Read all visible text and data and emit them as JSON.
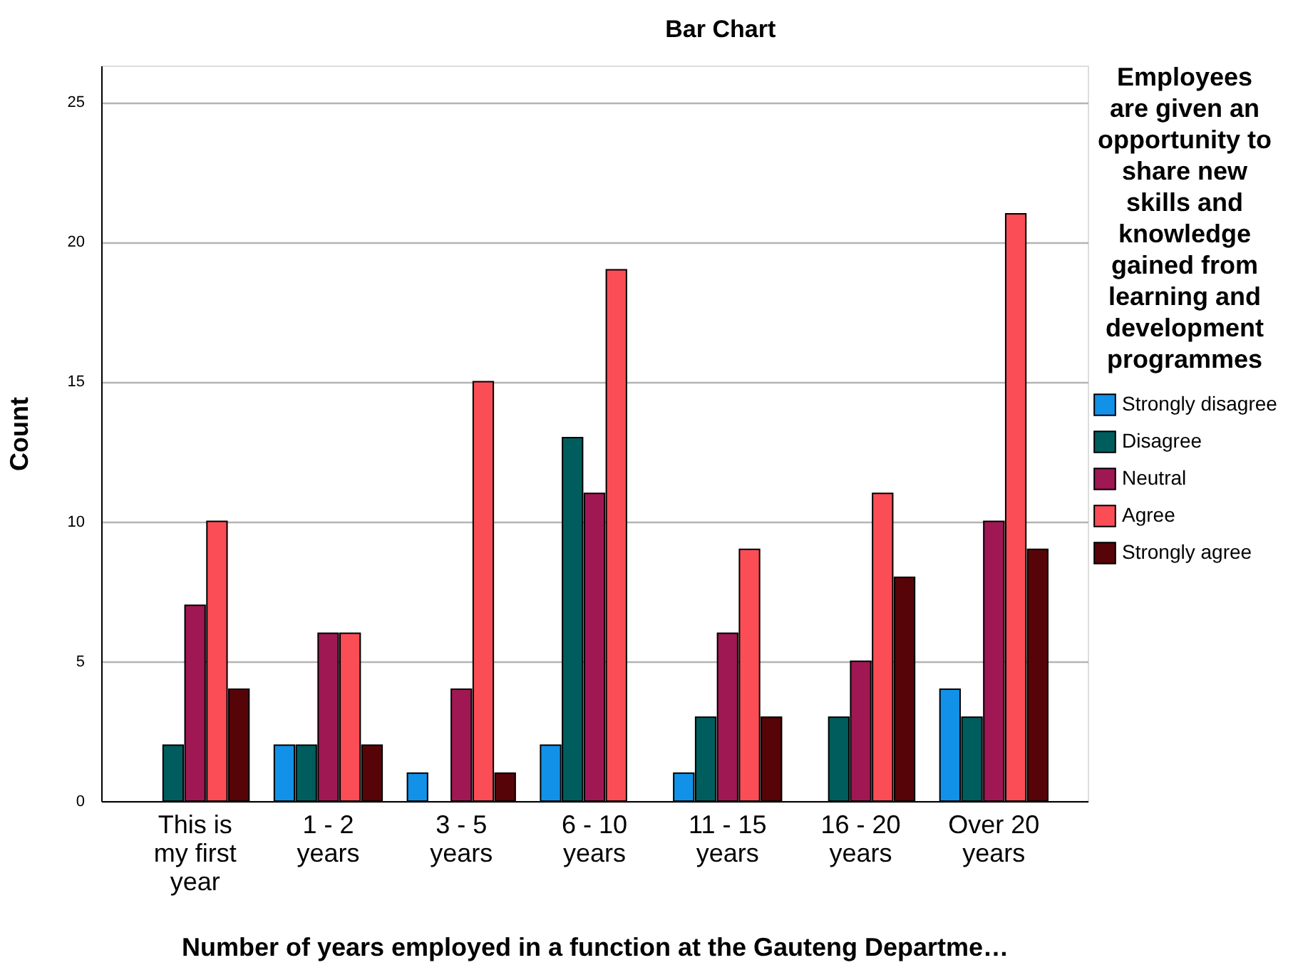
{
  "chart_data": {
    "type": "bar",
    "title": "Bar Chart",
    "xlabel": "Number of years employed in a function at the Gauteng Departme…",
    "ylabel": "Count",
    "legend_title": "Employees are given an opportunity to share new skills and knowledge gained from learning and development programmes",
    "categories": [
      "This is my first year",
      "1 - 2 years",
      "3 - 5 years",
      "6 - 10 years",
      "11 - 15 years",
      "16 - 20 years",
      "Over 20 years"
    ],
    "series": [
      {
        "name": "Strongly disagree",
        "color": "#1192e8",
        "values": [
          null,
          2,
          1,
          2,
          1,
          null,
          4
        ]
      },
      {
        "name": "Disagree",
        "color": "#005d5d",
        "values": [
          2,
          2,
          null,
          13,
          3,
          3,
          3
        ]
      },
      {
        "name": "Neutral",
        "color": "#9f1853",
        "values": [
          7,
          6,
          4,
          11,
          6,
          5,
          10
        ]
      },
      {
        "name": "Agree",
        "color": "#fa4d56",
        "values": [
          10,
          6,
          15,
          19,
          9,
          11,
          21
        ]
      },
      {
        "name": "Strongly agree",
        "color": "#570408",
        "values": [
          4,
          2,
          1,
          null,
          3,
          8,
          9
        ]
      }
    ],
    "ylim": [
      0,
      26.3
    ],
    "yticks": [
      0,
      5,
      10,
      15,
      20,
      25
    ],
    "grid": "y",
    "legend": "right"
  }
}
